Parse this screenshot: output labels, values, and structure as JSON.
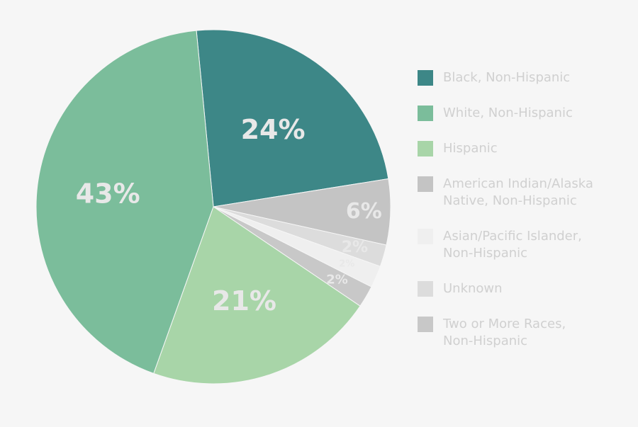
{
  "chart_data": {
    "type": "pie",
    "slices": [
      {
        "name": "Black, Non-Hispanic",
        "value": 24,
        "label": "24%",
        "color": "#3d8787"
      },
      {
        "name": "American Indian/Alaska Native, Non-Hispanic",
        "value": 6,
        "label": "6%",
        "color": "#c4c4c4"
      },
      {
        "name": "Unknown",
        "value": 2,
        "label": "2%",
        "color": "#dcdcdc"
      },
      {
        "name": "Asian/Pacific Islander, Non-Hispanic",
        "value": 2,
        "label": "2%",
        "color": "#efefef"
      },
      {
        "name": "Two or More Races, Non-Hispanic",
        "value": 2,
        "label": "2%",
        "color": "#c8c8c8"
      },
      {
        "name": "Hispanic",
        "value": 21,
        "label": "21%",
        "color": "#a8d5a8"
      },
      {
        "name": "White, Non-Hispanic",
        "value": 43,
        "label": "43%",
        "color": "#7bbd9b"
      }
    ],
    "legend_position": "right",
    "legend": [
      {
        "label_lines": [
          "Black, Non-Hispanic"
        ],
        "color": "#3d8787"
      },
      {
        "label_lines": [
          "White, Non-Hispanic"
        ],
        "color": "#7bbd9b"
      },
      {
        "label_lines": [
          "Hispanic"
        ],
        "color": "#a8d5a8"
      },
      {
        "label_lines": [
          "American Indian/Alaska",
          "Native, Non-Hispanic"
        ],
        "color": "#c4c4c4"
      },
      {
        "label_lines": [
          "Asian/Pacific Islander,",
          "Non-Hispanic"
        ],
        "color": "#efefef"
      },
      {
        "label_lines": [
          "Unknown"
        ],
        "color": "#dcdcdc"
      },
      {
        "label_lines": [
          "Two or More Races,",
          "Non-Hispanic"
        ],
        "color": "#c8c8c8"
      }
    ]
  }
}
